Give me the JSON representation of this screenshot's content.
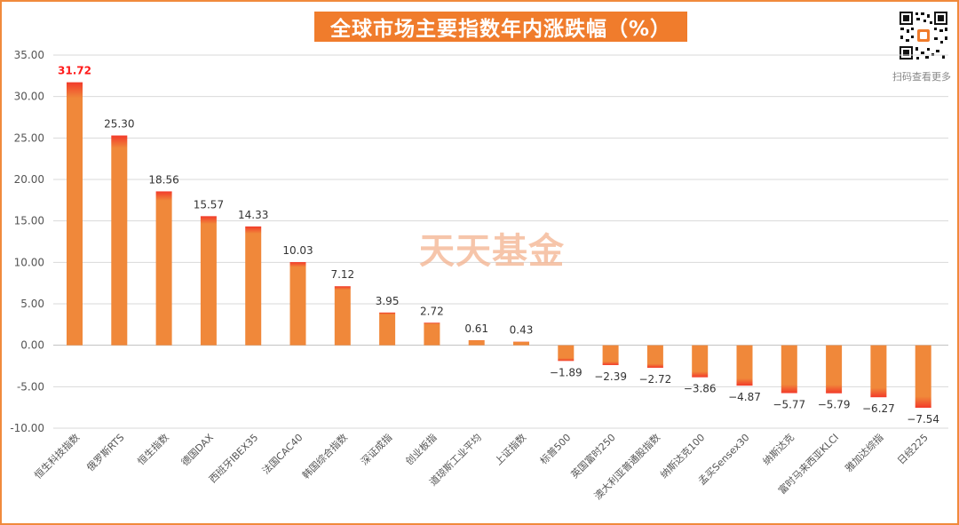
{
  "title": "全球市场主要指数年内涨跌幅（%）",
  "qr_caption": "扫码查看更多",
  "watermark": "天天基金",
  "colors": {
    "bar_main": "#f0883a",
    "bar_top": "#f23a2a",
    "frame": "#f08a3c",
    "highlight_label": "#ff1a1a",
    "label": "#333333",
    "grid": "#d9d9d9"
  },
  "chart_data": {
    "type": "bar",
    "categories": [
      "恒生科技指数",
      "俄罗斯RTS",
      "恒生指数",
      "德国DAX",
      "西班牙IBEX35",
      "法国CAC40",
      "韩国综合指数",
      "深证成指",
      "创业板指",
      "道琼斯工业平均",
      "上证指数",
      "标普500",
      "英国富时250",
      "澳大利亚普通股指数",
      "纳斯达克100",
      "孟买Sensex30",
      "纳斯达克",
      "富时马来西亚KLCI",
      "雅加达综指",
      "日经225"
    ],
    "values": [
      31.72,
      25.3,
      18.56,
      15.57,
      14.33,
      10.03,
      7.12,
      3.95,
      2.72,
      0.61,
      0.43,
      -1.89,
      -2.39,
      -2.72,
      -3.86,
      -4.87,
      -5.77,
      -5.79,
      -6.27,
      -7.54
    ],
    "value_labels": [
      "31.72",
      "25.30",
      "18.56",
      "15.57",
      "14.33",
      "10.03",
      "7.12",
      "3.95",
      "2.72",
      "0.61",
      "0.43",
      "−1.89",
      "−2.39",
      "−2.72",
      "−3.86",
      "−4.87",
      "−5.77",
      "−5.79",
      "−6.27",
      "−7.54"
    ],
    "ylim": [
      -10,
      35
    ],
    "yticks": [
      "35.00",
      "30.00",
      "25.00",
      "20.00",
      "15.00",
      "10.00",
      "5.00",
      "0.00",
      "-5.00",
      "-10.00"
    ],
    "ytick_values": [
      35,
      30,
      25,
      20,
      15,
      10,
      5,
      0,
      -5,
      -10
    ],
    "grid": true,
    "xlabel": "",
    "ylabel": ""
  }
}
